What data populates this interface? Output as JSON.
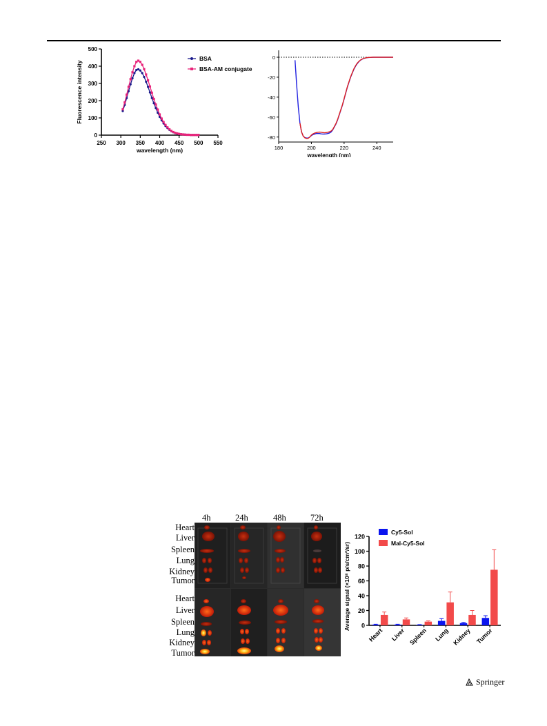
{
  "publisher": "Springer",
  "chart_data": [
    {
      "type": "line",
      "xlabel": "wavelength (nm)",
      "ylabel": "Fluorescence intensity",
      "xlim": [
        250,
        550
      ],
      "ylim": [
        0,
        500
      ],
      "xticks": [
        250,
        300,
        350,
        400,
        450,
        500,
        550
      ],
      "yticks": [
        0,
        100,
        200,
        300,
        400,
        500
      ],
      "legend": "top-right",
      "series": [
        {
          "name": "BSA",
          "color": "#1a1a8c",
          "marker": "circle",
          "x": [
            305,
            310,
            315,
            320,
            325,
            330,
            335,
            340,
            345,
            350,
            355,
            360,
            365,
            370,
            375,
            380,
            385,
            390,
            395,
            400,
            405,
            410,
            415,
            420,
            425,
            430,
            435,
            440,
            445,
            450,
            455,
            460,
            465,
            470,
            475,
            480,
            485,
            490,
            495,
            500
          ],
          "y": [
            140,
            175,
            215,
            255,
            295,
            330,
            360,
            378,
            382,
            375,
            360,
            338,
            310,
            280,
            248,
            215,
            185,
            157,
            130,
            106,
            86,
            68,
            53,
            41,
            31,
            23,
            17,
            12,
            9,
            7,
            5,
            4,
            3,
            2,
            2,
            1,
            1,
            1,
            1,
            1
          ]
        },
        {
          "name": "BSA-AM conjugate",
          "color": "#e8237a",
          "marker": "square",
          "x": [
            305,
            310,
            315,
            320,
            325,
            330,
            335,
            340,
            345,
            350,
            355,
            360,
            365,
            370,
            375,
            380,
            385,
            390,
            395,
            400,
            405,
            410,
            415,
            420,
            425,
            430,
            435,
            440,
            445,
            450,
            455,
            460,
            465,
            470,
            475,
            480,
            485,
            490,
            495,
            500
          ],
          "y": [
            150,
            190,
            235,
            280,
            325,
            365,
            400,
            425,
            432,
            425,
            408,
            383,
            352,
            318,
            282,
            246,
            210,
            178,
            148,
            120,
            96,
            76,
            59,
            45,
            34,
            25,
            18,
            13,
            10,
            7,
            5,
            4,
            3,
            2,
            2,
            1,
            1,
            1,
            1,
            1
          ]
        }
      ]
    },
    {
      "type": "line",
      "xlabel": "wavelength (nm)",
      "ylabel": "",
      "xlim": [
        180,
        250
      ],
      "ylim": [
        -85,
        0
      ],
      "xticks": [
        180,
        200,
        220,
        240
      ],
      "yticks": [
        0,
        -20,
        -40,
        -60,
        -80
      ],
      "zero_line": "dotted",
      "legend": "top-right",
      "series": [
        {
          "name": "BSA",
          "color": "#2020e0",
          "x": [
            190,
            191,
            192,
            193,
            194,
            195,
            196,
            197,
            198,
            199,
            200,
            201,
            202,
            203,
            204,
            205,
            206,
            207,
            208,
            209,
            210,
            211,
            212,
            213,
            214,
            215,
            216,
            217,
            218,
            219,
            220,
            221,
            222,
            223,
            224,
            225,
            226,
            227,
            228,
            229,
            230,
            231,
            232,
            233,
            234,
            235,
            236,
            237,
            238,
            239,
            240,
            242,
            244,
            246,
            248,
            250
          ],
          "y": [
            -3,
            -28,
            -50,
            -66,
            -75,
            -79,
            -80.5,
            -81,
            -81,
            -80,
            -78.5,
            -77.5,
            -77,
            -76.5,
            -76.5,
            -76.5,
            -76.8,
            -77,
            -77,
            -76.8,
            -76.5,
            -76,
            -75,
            -73,
            -70,
            -67,
            -63,
            -58,
            -53,
            -48,
            -42,
            -36,
            -30,
            -25,
            -20,
            -16,
            -12,
            -9,
            -6.5,
            -4.5,
            -3,
            -2,
            -1.3,
            -0.8,
            -0.5,
            -0.3,
            -0.2,
            -0.1,
            0,
            0,
            0,
            0,
            0,
            0,
            0,
            0
          ]
        },
        {
          "name": "BSA-AM conjugate",
          "color": "#e02020",
          "x": [
            193,
            194,
            195,
            196,
            197,
            198,
            199,
            200,
            201,
            202,
            203,
            204,
            205,
            206,
            207,
            208,
            209,
            210,
            211,
            212,
            213,
            214,
            215,
            216,
            217,
            218,
            219,
            220,
            221,
            222,
            223,
            224,
            225,
            226,
            227,
            228,
            229,
            230,
            231,
            232,
            233,
            234,
            235,
            236,
            237,
            238,
            239,
            240,
            242,
            244,
            246,
            248,
            250
          ],
          "y": [
            -66,
            -75,
            -79,
            -80.8,
            -81.5,
            -81.3,
            -80,
            -78,
            -76.8,
            -76,
            -75.5,
            -75.2,
            -75,
            -75.2,
            -75.5,
            -75.7,
            -75.5,
            -75.2,
            -74.8,
            -74,
            -72.5,
            -69.5,
            -66.5,
            -62.5,
            -57.5,
            -52.5,
            -47.5,
            -41.5,
            -35.5,
            -29.5,
            -24.5,
            -19.5,
            -15.5,
            -11.5,
            -8.5,
            -6,
            -4.2,
            -2.8,
            -1.8,
            -1.2,
            -0.7,
            -0.4,
            -0.2,
            -0.1,
            0,
            0,
            0,
            0,
            0,
            0,
            0,
            0,
            0
          ]
        }
      ]
    },
    {
      "type": "bar",
      "ylabel": "Average signal  (×10⁸ p/s/cm²/sr)",
      "ylim": [
        0,
        120
      ],
      "yticks": [
        0,
        20,
        40,
        60,
        80,
        100,
        120
      ],
      "categories": [
        "Heart",
        "Liver",
        "Spleen",
        "Lung",
        "Kidney",
        "Tumor"
      ],
      "legend": "top-left",
      "error_bars": "upper",
      "series": [
        {
          "name": "Cy5-Sol",
          "color": "#0a14ef",
          "values": [
            1,
            1,
            0.5,
            6,
            3,
            10
          ],
          "errors": [
            0.5,
            0.5,
            0.5,
            3,
            1,
            3
          ]
        },
        {
          "name": "Mal-Cy5-Sol",
          "color": "#f24a4a",
          "values": [
            14,
            8,
            5,
            31,
            14,
            75
          ],
          "errors": [
            4,
            2,
            1,
            14,
            6,
            27
          ]
        }
      ]
    }
  ],
  "imaging": {
    "timepoints": [
      "4h",
      "24h",
      "48h",
      "72h"
    ],
    "organs_top": [
      "Heart",
      "Liver",
      "Spleen",
      "Lung",
      "Kidney",
      "Tumor"
    ],
    "organs_bottom": [
      "Heart",
      "Liver",
      "Spleen",
      "Lung",
      "Kidney",
      "Tumor"
    ]
  }
}
